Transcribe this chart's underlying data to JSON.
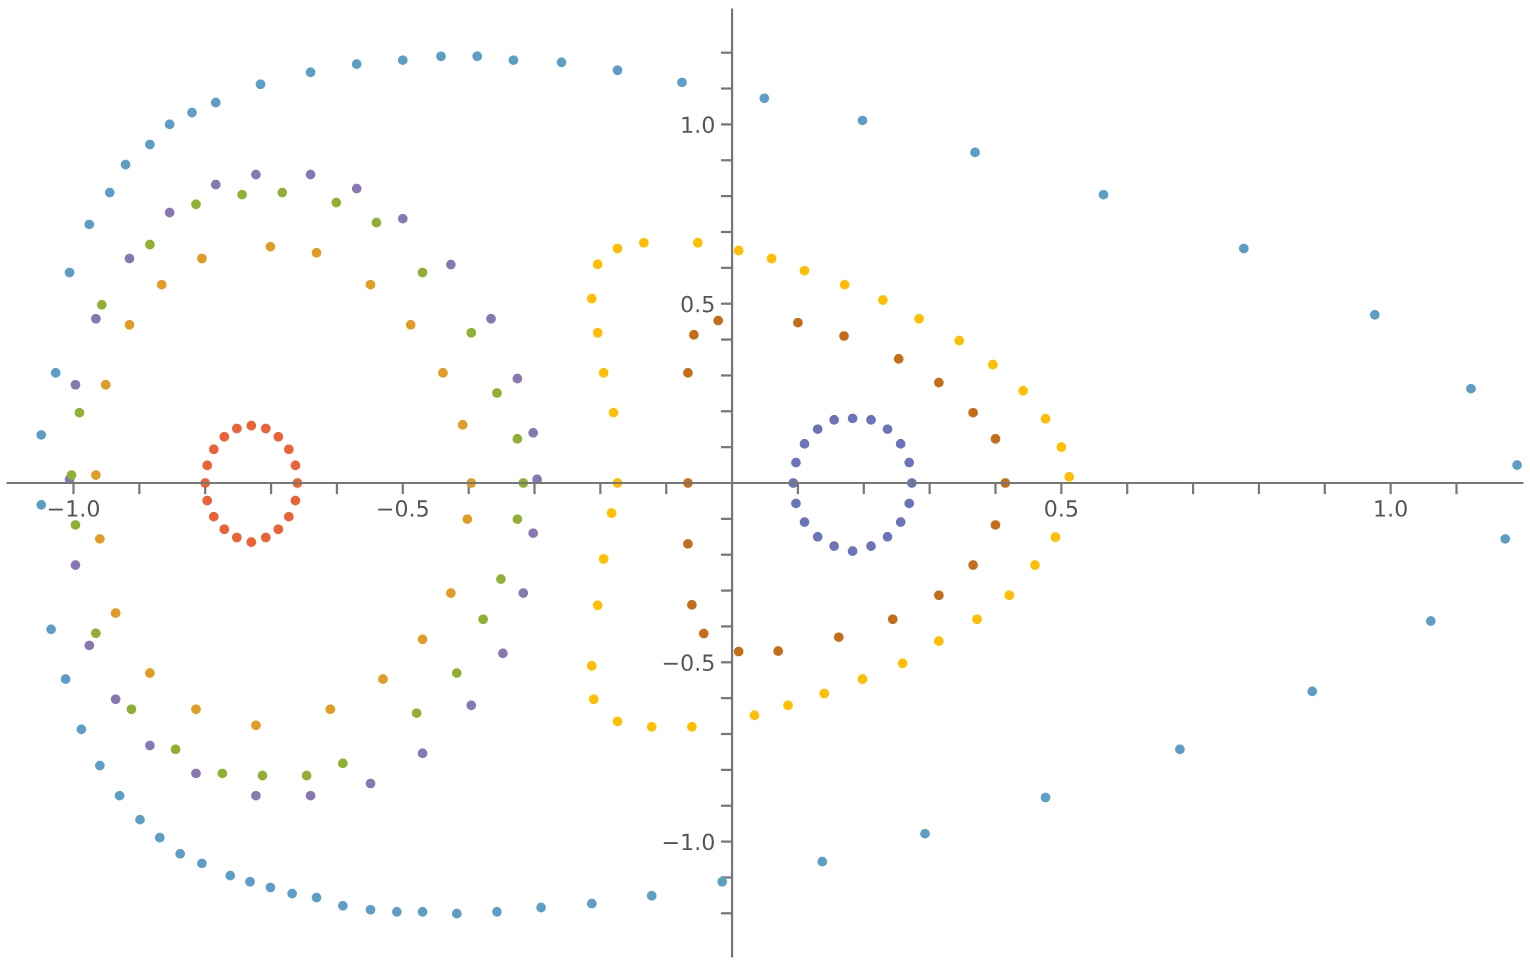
{
  "chart_data": {
    "type": "scatter",
    "xlim": [
      -1.1,
      1.2
    ],
    "ylim": [
      -1.32,
      1.32
    ],
    "xticks": [
      {
        "value": -1.0,
        "label": "−1.0"
      },
      {
        "value": -0.9,
        "label": null
      },
      {
        "value": -0.8,
        "label": null
      },
      {
        "value": -0.7,
        "label": null
      },
      {
        "value": -0.6,
        "label": null
      },
      {
        "value": -0.5,
        "label": "−0.5"
      },
      {
        "value": -0.4,
        "label": null
      },
      {
        "value": -0.3,
        "label": null
      },
      {
        "value": -0.2,
        "label": null
      },
      {
        "value": -0.1,
        "label": null
      },
      {
        "value": 0.1,
        "label": null
      },
      {
        "value": 0.2,
        "label": null
      },
      {
        "value": 0.3,
        "label": null
      },
      {
        "value": 0.4,
        "label": null
      },
      {
        "value": 0.5,
        "label": "0.5"
      },
      {
        "value": 0.6,
        "label": null
      },
      {
        "value": 0.7,
        "label": null
      },
      {
        "value": 0.8,
        "label": null
      },
      {
        "value": 0.9,
        "label": null
      },
      {
        "value": 1.0,
        "label": "1.0"
      },
      {
        "value": 1.1,
        "label": null
      }
    ],
    "yticks": [
      {
        "value": -1.2,
        "label": null
      },
      {
        "value": -1.1,
        "label": null
      },
      {
        "value": -1.0,
        "label": "−1.0"
      },
      {
        "value": -0.9,
        "label": null
      },
      {
        "value": -0.8,
        "label": null
      },
      {
        "value": -0.7,
        "label": null
      },
      {
        "value": -0.6,
        "label": null
      },
      {
        "value": -0.5,
        "label": "−0.5"
      },
      {
        "value": -0.4,
        "label": null
      },
      {
        "value": -0.3,
        "label": null
      },
      {
        "value": -0.2,
        "label": null
      },
      {
        "value": -0.1,
        "label": null
      },
      {
        "value": 0.1,
        "label": null
      },
      {
        "value": 0.2,
        "label": null
      },
      {
        "value": 0.3,
        "label": null
      },
      {
        "value": 0.4,
        "label": null
      },
      {
        "value": 0.5,
        "label": "0.5"
      },
      {
        "value": 0.6,
        "label": null
      },
      {
        "value": 0.7,
        "label": null
      },
      {
        "value": 0.8,
        "label": null
      },
      {
        "value": 0.9,
        "label": null
      },
      {
        "value": 1.0,
        "label": "1.0"
      },
      {
        "value": 1.1,
        "label": null
      },
      {
        "value": 1.2,
        "label": null
      }
    ],
    "grid": false,
    "legend": false,
    "marker": "circle",
    "series": [
      {
        "color": "#5d9ec7",
        "x": [
          -1.049,
          -1.027,
          -1.006,
          -0.976,
          -0.945,
          -0.921,
          -0.884,
          -0.854,
          -0.82,
          -0.784,
          -0.716,
          -0.64,
          -0.57,
          -0.5,
          -0.442,
          -0.387,
          -0.332,
          -0.259,
          -0.174,
          -0.076,
          0.049,
          0.198,
          0.369,
          0.564,
          0.777,
          0.976,
          1.122,
          1.192,
          1.174,
          1.061,
          0.881,
          0.68,
          0.476,
          0.293,
          0.137,
          -0.015,
          -0.122,
          -0.213,
          -0.29,
          -0.357,
          -0.418,
          -0.47,
          -0.509,
          -0.549,
          -0.591,
          -0.631,
          -0.668,
          -0.701,
          -0.732,
          -0.762,
          -0.805,
          -0.838,
          -0.869,
          -0.899,
          -0.93,
          -0.96,
          -0.988,
          -1.012,
          -1.034,
          -1.049
        ],
        "values": [
          0.134,
          0.307,
          0.587,
          0.721,
          0.81,
          0.888,
          0.944,
          1.0,
          1.033,
          1.061,
          1.112,
          1.145,
          1.168,
          1.179,
          1.19,
          1.19,
          1.179,
          1.173,
          1.151,
          1.117,
          1.073,
          1.011,
          0.922,
          0.804,
          0.654,
          0.469,
          0.263,
          0.05,
          -0.156,
          -0.385,
          -0.581,
          -0.743,
          -0.877,
          -0.978,
          -1.056,
          -1.112,
          -1.151,
          -1.173,
          -1.184,
          -1.196,
          -1.201,
          -1.196,
          -1.196,
          -1.19,
          -1.179,
          -1.156,
          -1.145,
          -1.128,
          -1.112,
          -1.095,
          -1.061,
          -1.034,
          -0.989,
          -0.939,
          -0.872,
          -0.788,
          -0.687,
          -0.547,
          -0.408,
          -0.061
        ]
      },
      {
        "color": "#8778b3",
        "x": [
          -1.006,
          -0.997,
          -0.966,
          -0.915,
          -0.854,
          -0.784,
          -0.723,
          -0.64,
          -0.57,
          -0.5,
          -0.427,
          -0.366,
          -0.326,
          -0.302,
          -0.296,
          -0.302,
          -0.317,
          -0.348,
          -0.396,
          -0.47,
          -0.549,
          -0.64,
          -0.723,
          -0.814,
          -0.884,
          -0.936,
          -0.976,
          -0.997
        ],
        "values": [
          0.01,
          0.274,
          0.458,
          0.626,
          0.754,
          0.832,
          0.86,
          0.86,
          0.821,
          0.737,
          0.609,
          0.458,
          0.291,
          0.14,
          0.01,
          -0.14,
          -0.307,
          -0.475,
          -0.62,
          -0.754,
          -0.838,
          -0.872,
          -0.872,
          -0.81,
          -0.732,
          -0.603,
          -0.453,
          -0.229
        ]
      },
      {
        "color": "#8fb032",
        "x": [
          -1.003,
          -0.991,
          -0.957,
          -0.884,
          -0.814,
          -0.744,
          -0.683,
          -0.601,
          -0.54,
          -0.47,
          -0.396,
          -0.357,
          -0.326,
          -0.317,
          -0.326,
          -0.351,
          -0.378,
          -0.418,
          -0.479,
          -0.591,
          -0.646,
          -0.713,
          -0.774,
          -0.845,
          -0.912,
          -0.966,
          -0.997
        ],
        "values": [
          0.022,
          0.196,
          0.497,
          0.665,
          0.777,
          0.804,
          0.81,
          0.782,
          0.726,
          0.587,
          0.419,
          0.251,
          0.123,
          0.0,
          -0.101,
          -0.268,
          -0.38,
          -0.53,
          -0.642,
          -0.782,
          -0.816,
          -0.816,
          -0.81,
          -0.743,
          -0.631,
          -0.419,
          -0.117
        ]
      },
      {
        "color": "#e19c24",
        "x": [
          -0.966,
          -0.951,
          -0.915,
          -0.866,
          -0.805,
          -0.701,
          -0.631,
          -0.549,
          -0.488,
          -0.439,
          -0.409,
          -0.396,
          -0.402,
          -0.427,
          -0.47,
          -0.53,
          -0.61,
          -0.723,
          -0.814,
          -0.884,
          -0.936,
          -0.96
        ],
        "values": [
          0.022,
          0.274,
          0.441,
          0.553,
          0.626,
          0.659,
          0.642,
          0.553,
          0.441,
          0.307,
          0.162,
          0.0,
          -0.101,
          -0.307,
          -0.436,
          -0.547,
          -0.631,
          -0.676,
          -0.631,
          -0.53,
          -0.363,
          -0.156
        ]
      },
      {
        "color": "#eb6235",
        "x": [
          -0.66,
          -0.663,
          -0.673,
          -0.689,
          -0.708,
          -0.73,
          -0.752,
          -0.771,
          -0.787,
          -0.797,
          -0.8,
          -0.797,
          -0.787,
          -0.771,
          -0.752,
          -0.73,
          -0.708,
          -0.689,
          -0.673,
          -0.663
        ],
        "values": [
          0.0,
          0.049,
          0.094,
          0.129,
          0.152,
          0.16,
          0.152,
          0.129,
          0.094,
          0.049,
          0.0,
          -0.049,
          -0.094,
          -0.129,
          -0.152,
          -0.165,
          -0.152,
          -0.129,
          -0.094,
          -0.049
        ]
      },
      {
        "color": "#ffbf00",
        "x": [
          -0.213,
          -0.204,
          -0.174,
          -0.134,
          -0.052,
          0.01,
          0.06,
          0.11,
          0.171,
          0.229,
          0.284,
          0.345,
          0.396,
          0.442,
          0.476,
          0.5,
          0.512,
          0.491,
          0.46,
          0.421,
          0.372,
          0.314,
          0.259,
          0.198,
          0.14,
          0.085,
          0.034,
          -0.061,
          -0.122,
          -0.174,
          -0.21,
          -0.213,
          -0.204,
          -0.195,
          -0.183,
          -0.174,
          -0.18,
          -0.195,
          -0.204
        ],
        "values": [
          0.514,
          0.61,
          0.654,
          0.67,
          0.67,
          0.648,
          0.626,
          0.592,
          0.553,
          0.51,
          0.458,
          0.397,
          0.33,
          0.257,
          0.179,
          0.1,
          0.017,
          -0.151,
          -0.229,
          -0.313,
          -0.38,
          -0.441,
          -0.503,
          -0.547,
          -0.587,
          -0.62,
          -0.648,
          -0.68,
          -0.68,
          -0.665,
          -0.603,
          -0.51,
          -0.341,
          -0.212,
          -0.084,
          0.0,
          0.196,
          0.307,
          0.419
        ]
      },
      {
        "color": "#c56e1a",
        "x": [
          -0.021,
          0.1,
          0.17,
          0.253,
          0.314,
          0.366,
          0.4,
          0.415,
          0.4,
          0.366,
          0.314,
          0.244,
          0.162,
          0.07,
          0.01,
          -0.043,
          -0.061,
          -0.067,
          -0.067,
          -0.067,
          -0.058
        ],
        "values": [
          0.453,
          0.447,
          0.41,
          0.346,
          0.28,
          0.196,
          0.123,
          0.0,
          -0.117,
          -0.229,
          -0.313,
          -0.38,
          -0.43,
          -0.469,
          -0.47,
          -0.42,
          -0.34,
          -0.17,
          0.0,
          0.307,
          0.413
        ]
      },
      {
        "color": "#6b74b9",
        "x": [
          0.273,
          0.269,
          0.256,
          0.236,
          0.211,
          0.183,
          0.155,
          0.13,
          0.11,
          0.097,
          0.093,
          0.097,
          0.11,
          0.13,
          0.155,
          0.183,
          0.211,
          0.236,
          0.256,
          0.269
        ],
        "values": [
          0.0,
          0.057,
          0.109,
          0.15,
          0.176,
          0.18,
          0.176,
          0.15,
          0.109,
          0.057,
          0.0,
          -0.057,
          -0.109,
          -0.15,
          -0.176,
          -0.19,
          -0.176,
          -0.15,
          -0.109,
          -0.057
        ]
      }
    ]
  }
}
